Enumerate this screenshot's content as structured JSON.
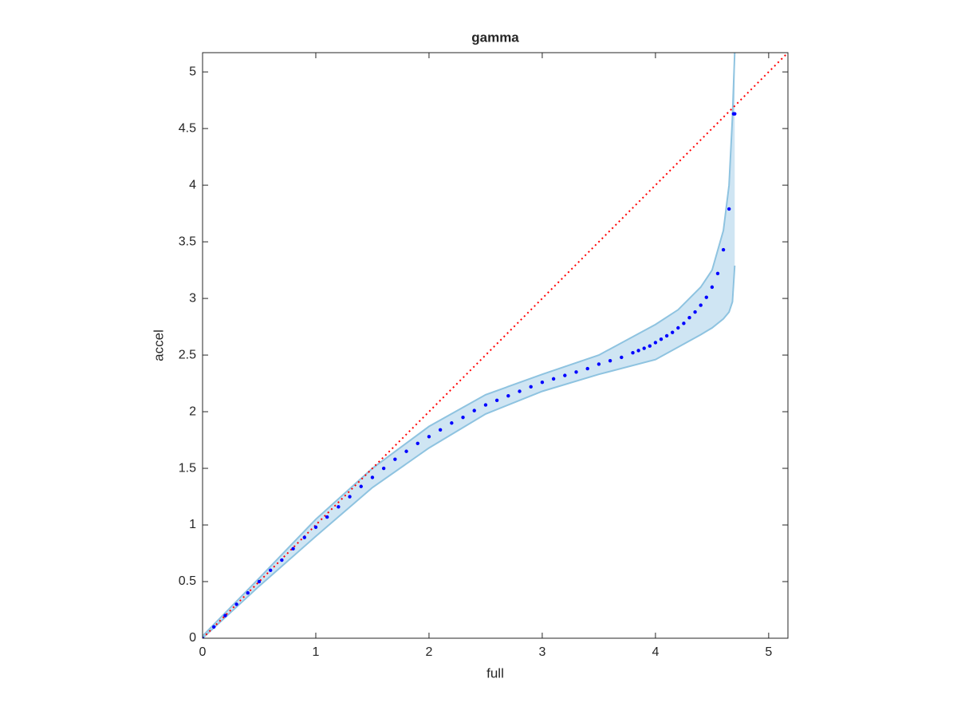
{
  "chart_data": {
    "type": "scatter",
    "title": "gamma",
    "x_label": "full",
    "y_label": "accel",
    "xlim": [
      0,
      5.17
    ],
    "ylim": [
      0,
      5.17
    ],
    "xticks": [
      0,
      1,
      2,
      3,
      4,
      5
    ],
    "yticks": [
      0,
      0.5,
      1,
      1.5,
      2,
      2.5,
      3,
      3.5,
      4,
      4.5,
      5
    ],
    "grid": false,
    "series": [
      {
        "color": "#0000ff",
        "x": [
          0,
          0.1,
          0.2,
          0.3,
          0.4,
          0.5,
          0.6,
          0.7,
          0.8,
          0.9,
          1,
          1.1,
          1.2,
          1.3,
          1.4,
          1.5,
          1.6,
          1.7,
          1.8,
          1.9,
          2,
          2.1,
          2.2,
          2.3,
          2.4,
          2.5,
          2.6,
          2.7,
          2.8,
          2.9,
          3,
          3.1,
          3.2,
          3.3,
          3.4,
          3.5,
          3.6,
          3.7,
          3.8,
          3.85,
          3.9,
          3.95,
          4,
          4.05,
          4.1,
          4.15,
          4.2,
          4.25,
          4.3,
          4.35,
          4.4,
          4.45,
          4.5,
          4.55,
          4.6,
          4.65,
          4.69,
          4.7
        ],
        "y": [
          0,
          0.1,
          0.2,
          0.3,
          0.4,
          0.5,
          0.6,
          0.69,
          0.79,
          0.89,
          0.98,
          1.07,
          1.16,
          1.25,
          1.34,
          1.42,
          1.5,
          1.58,
          1.65,
          1.72,
          1.78,
          1.84,
          1.9,
          1.95,
          2.01,
          2.06,
          2.1,
          2.14,
          2.18,
          2.22,
          2.26,
          2.29,
          2.32,
          2.35,
          2.38,
          2.42,
          2.45,
          2.48,
          2.52,
          2.54,
          2.56,
          2.58,
          2.61,
          2.64,
          2.67,
          2.7,
          2.74,
          2.78,
          2.83,
          2.88,
          2.94,
          3.01,
          3.1,
          3.22,
          3.43,
          3.79,
          4.63,
          4.63
        ]
      }
    ],
    "band": {
      "color": "#cfe5f3",
      "edge_color": "#8ec3e0",
      "x": [
        0,
        0.5,
        1,
        1.5,
        2,
        2.5,
        3,
        3.5,
        4,
        4.2,
        4.4,
        4.5,
        4.6,
        4.65,
        4.68,
        4.7
      ],
      "upper": [
        0.02,
        0.53,
        1.05,
        1.5,
        1.87,
        2.15,
        2.33,
        2.5,
        2.77,
        2.9,
        3.1,
        3.25,
        3.6,
        4.0,
        4.6,
        5.17
      ],
      "lower": [
        0,
        0.46,
        0.9,
        1.33,
        1.68,
        1.98,
        2.18,
        2.33,
        2.46,
        2.57,
        2.68,
        2.74,
        2.82,
        2.88,
        2.97,
        3.29
      ]
    },
    "reference_line": {
      "color": "#ff0000",
      "x": [
        0,
        5.17
      ],
      "y": [
        0,
        5.17
      ]
    }
  }
}
